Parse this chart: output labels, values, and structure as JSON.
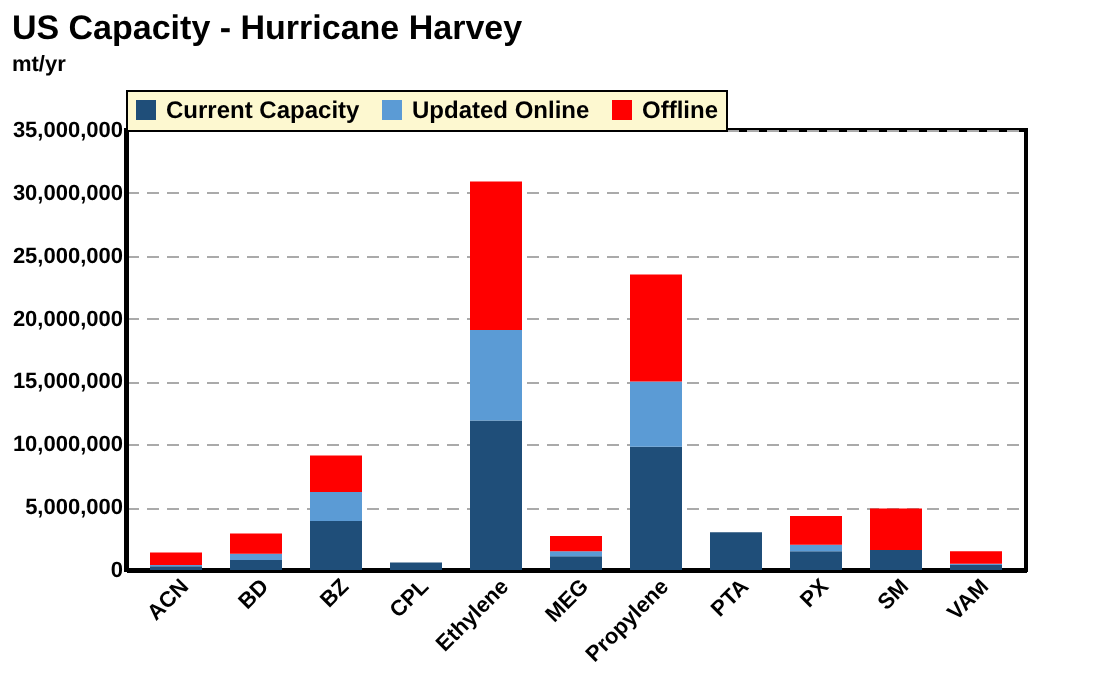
{
  "chart_data": {
    "type": "bar",
    "title": "US Capacity - Hurricane Harvey",
    "ylabel": "mt/yr",
    "stacked": true,
    "legend": "top",
    "grid": "y",
    "categories": [
      "ACN",
      "BD",
      "BZ",
      "CPL",
      "Ethylene",
      "MEG",
      "Propylene",
      "PTA",
      "PX",
      "SM",
      "VAM"
    ],
    "series": [
      {
        "name": "Current Capacity",
        "color": "#1f4e79",
        "values": [
          300000,
          800000,
          3900000,
          600000,
          11900000,
          1100000,
          9800000,
          3000000,
          1500000,
          1600000,
          400000
        ]
      },
      {
        "name": "Updated Online",
        "color": "#5b9bd5",
        "values": [
          100000,
          500000,
          2300000,
          0,
          7200000,
          400000,
          5200000,
          0,
          500000,
          0,
          100000
        ]
      },
      {
        "name": "Offline",
        "color": "#ff0000",
        "values": [
          1000000,
          1600000,
          2900000,
          0,
          11800000,
          1200000,
          8500000,
          0,
          2300000,
          3300000,
          1000000
        ]
      }
    ],
    "ylim": [
      0,
      35000000
    ],
    "yticks": [
      0,
      {
        "value": 5000000,
        "label": "5,000,000"
      },
      {
        "value": 10000000,
        "label": "10,000,000"
      },
      {
        "value": 15000000,
        "label": "15,000,000"
      },
      {
        "value": 20000000,
        "label": "20,000,000"
      },
      {
        "value": 25000000,
        "label": "25,000,000"
      },
      {
        "value": 30000000,
        "label": "30,000,000"
      },
      {
        "value": 35000000,
        "label": "35,000,000"
      }
    ]
  }
}
